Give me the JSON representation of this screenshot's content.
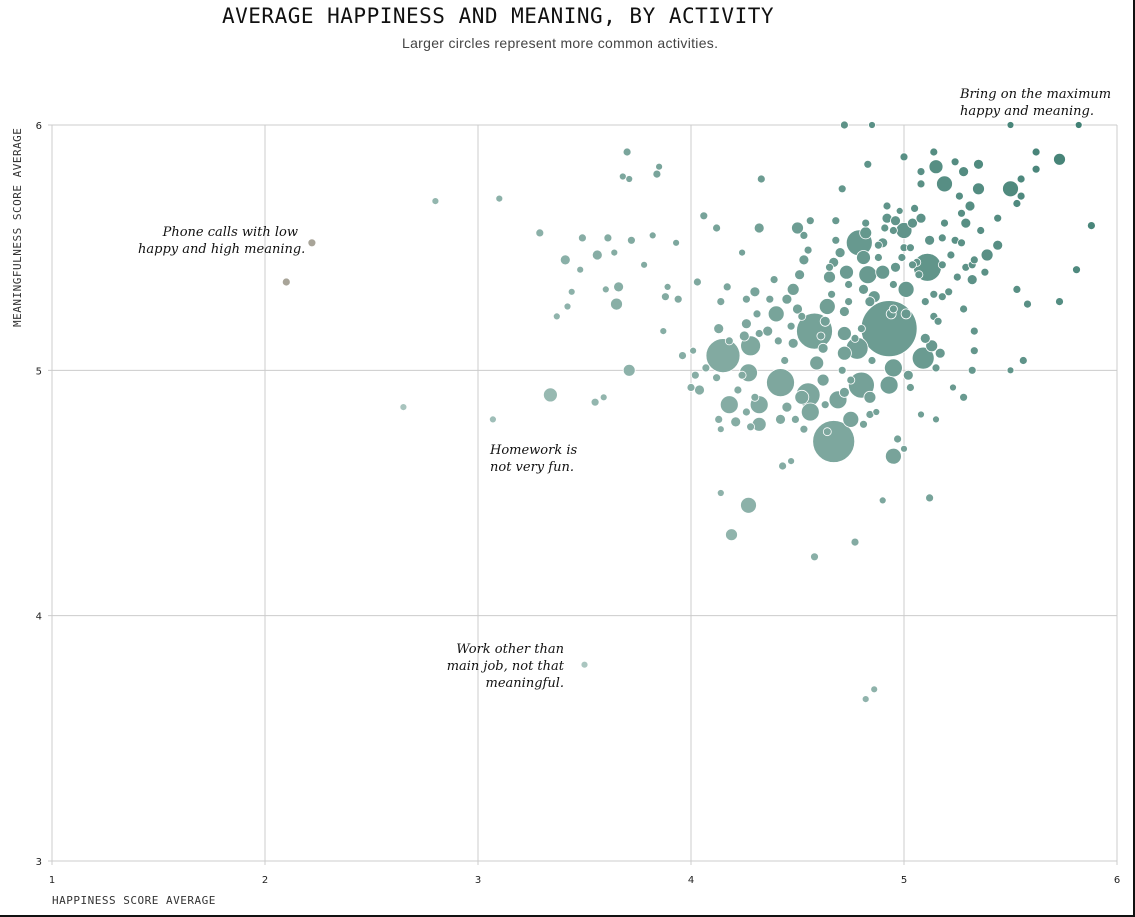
{
  "chart_data": {
    "type": "scatter",
    "title": "AVERAGE HAPPINESS AND MEANING, BY ACTIVITY",
    "subtitle": "Larger circles represent more common activities.",
    "xlabel": "HAPPINESS SCORE AVERAGE",
    "ylabel": "MEANINGFULNESS SCORE AVERAGE",
    "xlim": [
      1,
      6
    ],
    "ylim": [
      3,
      6
    ],
    "xticks": [
      "1",
      "2",
      "3",
      "4",
      "5",
      "6"
    ],
    "yticks": [
      "3",
      "4",
      "5",
      "6"
    ],
    "grid": true,
    "colors": {
      "low": "#c2d6d2",
      "mid": "#7fa89f",
      "high": "#3f7f73",
      "outlier": "#a8a498",
      "grid": "#cccccc"
    },
    "annotations": [
      {
        "lines": [
          "Phone calls with low",
          "happy and high meaning."
        ]
      },
      {
        "lines": [
          "Homework is",
          "not very fun."
        ]
      },
      {
        "lines": [
          "Work other than",
          "main job, not that",
          "meaningful."
        ]
      },
      {
        "lines": [
          "Bring on the maximum",
          "happy and meaning."
        ]
      }
    ],
    "points": [
      [
        2.22,
        5.52,
        4
      ],
      [
        2.1,
        5.36,
        4
      ],
      [
        2.8,
        5.69,
        3.5
      ],
      [
        3.1,
        5.7,
        3.5
      ],
      [
        2.65,
        4.85,
        3.5
      ],
      [
        3.07,
        4.8,
        3.5
      ],
      [
        3.34,
        4.9,
        7
      ],
      [
        3.5,
        3.8,
        3.5
      ],
      [
        3.29,
        5.56,
        4
      ],
      [
        3.41,
        5.45,
        5
      ],
      [
        3.49,
        5.54,
        4
      ],
      [
        3.48,
        5.41,
        3.5
      ],
      [
        3.44,
        5.32,
        3.5
      ],
      [
        3.42,
        5.26,
        3.5
      ],
      [
        3.37,
        5.22,
        3.5
      ],
      [
        3.55,
        4.87,
        4
      ],
      [
        3.59,
        4.89,
        3.5
      ],
      [
        3.56,
        5.47,
        5
      ],
      [
        3.61,
        5.54,
        4
      ],
      [
        3.64,
        5.48,
        3.5
      ],
      [
        3.6,
        5.33,
        3.5
      ],
      [
        3.66,
        5.34,
        5
      ],
      [
        3.65,
        5.27,
        6
      ],
      [
        3.71,
        5.0,
        6
      ],
      [
        3.7,
        5.89,
        4
      ],
      [
        3.71,
        5.78,
        3.5
      ],
      [
        3.68,
        5.79,
        3.5
      ],
      [
        3.72,
        5.53,
        4
      ],
      [
        3.78,
        5.43,
        3.5
      ],
      [
        3.82,
        5.55,
        3.5
      ],
      [
        3.84,
        5.8,
        4
      ],
      [
        3.85,
        5.83,
        3.5
      ],
      [
        3.88,
        5.3,
        4
      ],
      [
        3.87,
        5.16,
        3.5
      ],
      [
        3.93,
        5.52,
        3.5
      ],
      [
        3.94,
        5.29,
        4
      ],
      [
        3.89,
        5.34,
        3.5
      ],
      [
        3.96,
        5.06,
        4
      ],
      [
        4.01,
        5.08,
        3.5
      ],
      [
        4.0,
        4.93,
        4
      ],
      [
        4.02,
        4.98,
        4
      ],
      [
        4.03,
        5.36,
        4
      ],
      [
        4.04,
        4.92,
        5
      ],
      [
        4.07,
        5.01,
        4
      ],
      [
        4.06,
        5.63,
        4
      ],
      [
        4.12,
        5.58,
        4
      ],
      [
        4.13,
        5.17,
        5
      ],
      [
        4.13,
        4.8,
        4
      ],
      [
        4.14,
        4.76,
        3.5
      ],
      [
        4.12,
        4.97,
        4
      ],
      [
        4.15,
        5.06,
        17
      ],
      [
        4.17,
        5.34,
        4
      ],
      [
        4.14,
        5.28,
        4
      ],
      [
        4.18,
        4.86,
        9
      ],
      [
        4.21,
        4.79,
        5
      ],
      [
        4.18,
        5.12,
        4
      ],
      [
        4.19,
        4.33,
        6
      ],
      [
        4.14,
        4.5,
        3.5
      ],
      [
        4.24,
        5.48,
        3.5
      ],
      [
        4.26,
        5.29,
        4
      ],
      [
        4.25,
        5.14,
        5
      ],
      [
        4.28,
        5.1,
        10
      ],
      [
        4.27,
        4.99,
        9
      ],
      [
        4.3,
        4.89,
        4
      ],
      [
        4.32,
        4.86,
        9
      ],
      [
        4.32,
        4.78,
        7
      ],
      [
        4.24,
        4.98,
        4
      ],
      [
        4.22,
        4.92,
        4
      ],
      [
        4.26,
        4.83,
        4
      ],
      [
        4.28,
        4.77,
        4
      ],
      [
        4.26,
        5.19,
        5
      ],
      [
        4.3,
        5.32,
        5
      ],
      [
        4.31,
        5.23,
        4
      ],
      [
        4.32,
        5.58,
        5
      ],
      [
        4.33,
        5.78,
        4
      ],
      [
        4.32,
        5.15,
        4
      ],
      [
        4.27,
        4.45,
        8
      ],
      [
        4.36,
        5.16,
        5
      ],
      [
        4.37,
        5.29,
        4
      ],
      [
        4.39,
        5.37,
        4
      ],
      [
        4.4,
        5.23,
        8
      ],
      [
        4.41,
        5.12,
        4
      ],
      [
        4.42,
        4.95,
        14
      ],
      [
        4.44,
        5.04,
        4
      ],
      [
        4.42,
        4.8,
        5
      ],
      [
        4.45,
        4.85,
        5
      ],
      [
        4.43,
        4.61,
        4
      ],
      [
        4.47,
        4.63,
        3.5
      ],
      [
        4.49,
        4.8,
        4
      ],
      [
        4.45,
        5.29,
        5
      ],
      [
        4.48,
        5.33,
        6
      ],
      [
        4.47,
        5.18,
        4
      ],
      [
        4.48,
        5.11,
        5
      ],
      [
        4.5,
        5.25,
        5
      ],
      [
        4.52,
        5.22,
        4
      ],
      [
        4.51,
        5.39,
        5
      ],
      [
        4.53,
        5.45,
        5
      ],
      [
        4.55,
        5.49,
        4
      ],
      [
        4.53,
        5.55,
        4
      ],
      [
        4.5,
        5.58,
        6
      ],
      [
        4.52,
        4.89,
        7
      ],
      [
        4.53,
        4.76,
        4
      ],
      [
        4.55,
        4.9,
        12
      ],
      [
        4.56,
        4.83,
        9
      ],
      [
        4.58,
        5.16,
        18
      ],
      [
        4.58,
        4.24,
        4
      ],
      [
        4.59,
        5.03,
        7
      ],
      [
        4.61,
        5.14,
        4
      ],
      [
        4.62,
        5.09,
        5
      ],
      [
        4.62,
        4.96,
        6
      ],
      [
        4.63,
        4.86,
        4
      ],
      [
        4.64,
        4.75,
        4
      ],
      [
        4.63,
        5.2,
        5
      ],
      [
        4.64,
        5.26,
        8
      ],
      [
        4.65,
        5.38,
        6
      ],
      [
        4.66,
        5.31,
        4
      ],
      [
        4.65,
        5.42,
        4
      ],
      [
        4.67,
        5.44,
        5
      ],
      [
        4.68,
        5.53,
        4
      ],
      [
        4.7,
        5.48,
        5
      ],
      [
        4.67,
        4.71,
        21
      ],
      [
        4.69,
        4.88,
        9
      ],
      [
        4.71,
        5.0,
        4
      ],
      [
        4.72,
        5.07,
        7
      ],
      [
        4.72,
        4.91,
        5
      ],
      [
        4.72,
        5.15,
        7
      ],
      [
        4.72,
        5.24,
        5
      ],
      [
        4.74,
        5.35,
        4
      ],
      [
        4.73,
        5.4,
        7
      ],
      [
        4.74,
        5.28,
        4
      ],
      [
        4.75,
        4.96,
        4
      ],
      [
        4.75,
        4.8,
        8
      ],
      [
        4.77,
        4.3,
        4
      ],
      [
        4.77,
        5.13,
        4
      ],
      [
        4.78,
        5.09,
        11
      ],
      [
        4.8,
        4.94,
        13
      ],
      [
        4.8,
        5.17,
        4
      ],
      [
        4.81,
        5.46,
        7
      ],
      [
        4.79,
        5.52,
        13
      ],
      [
        4.81,
        5.33,
        5
      ],
      [
        4.82,
        5.56,
        6
      ],
      [
        4.82,
        5.6,
        4
      ],
      [
        4.83,
        5.39,
        9
      ],
      [
        4.81,
        4.78,
        4
      ],
      [
        4.84,
        4.89,
        6
      ],
      [
        4.84,
        4.82,
        4
      ],
      [
        4.84,
        5.28,
        5
      ],
      [
        4.86,
        5.3,
        6
      ],
      [
        4.85,
        5.04,
        4
      ],
      [
        4.87,
        4.83,
        3.5
      ],
      [
        4.88,
        5.46,
        4
      ],
      [
        4.88,
        5.51,
        4
      ],
      [
        4.9,
        4.47,
        3.5
      ],
      [
        4.9,
        5.4,
        7
      ],
      [
        4.91,
        5.58,
        4
      ],
      [
        4.9,
        5.52,
        5
      ],
      [
        4.92,
        5.62,
        5
      ],
      [
        4.93,
        5.17,
        28
      ],
      [
        4.93,
        4.94,
        9
      ],
      [
        4.94,
        5.23,
        5
      ],
      [
        4.95,
        5.25,
        4
      ],
      [
        4.95,
        5.35,
        4
      ],
      [
        4.96,
        5.42,
        5
      ],
      [
        4.97,
        4.72,
        4
      ],
      [
        4.95,
        5.01,
        9
      ],
      [
        4.92,
        5.67,
        4
      ],
      [
        4.96,
        5.61,
        5
      ],
      [
        4.98,
        5.65,
        3.5
      ],
      [
        4.99,
        5.46,
        4
      ],
      [
        5.0,
        5.5,
        4
      ],
      [
        5.0,
        5.57,
        8
      ],
      [
        5.01,
        5.33,
        8
      ],
      [
        5.01,
        5.23,
        5
      ],
      [
        5.02,
        4.98,
        5
      ],
      [
        5.03,
        4.93,
        4
      ],
      [
        5.03,
        5.5,
        4
      ],
      [
        5.04,
        5.6,
        5
      ],
      [
        5.05,
        5.66,
        4
      ],
      [
        5.06,
        5.44,
        4
      ],
      [
        5.07,
        5.39,
        4
      ],
      [
        5.08,
        5.62,
        5
      ],
      [
        5.09,
        5.05,
        11
      ],
      [
        5.1,
        5.28,
        4
      ],
      [
        5.1,
        5.13,
        5
      ],
      [
        5.11,
        5.42,
        14
      ],
      [
        5.12,
        5.53,
        5
      ],
      [
        5.13,
        5.1,
        6
      ],
      [
        5.14,
        5.22,
        4
      ],
      [
        5.14,
        5.31,
        4
      ],
      [
        5.15,
        5.01,
        4
      ],
      [
        5.16,
        5.2,
        4
      ],
      [
        5.17,
        5.07,
        5
      ],
      [
        5.18,
        5.43,
        4
      ],
      [
        5.18,
        5.54,
        4
      ],
      [
        5.18,
        5.3,
        4
      ],
      [
        5.19,
        5.6,
        4
      ],
      [
        5.19,
        5.76,
        8
      ],
      [
        5.21,
        5.32,
        4
      ],
      [
        5.22,
        5.47,
        4
      ],
      [
        5.23,
        4.93,
        3.5
      ],
      [
        5.24,
        5.53,
        4
      ],
      [
        5.24,
        5.85,
        4
      ],
      [
        5.25,
        5.38,
        4
      ],
      [
        5.26,
        5.71,
        4
      ],
      [
        5.27,
        5.52,
        4
      ],
      [
        5.27,
        5.64,
        4
      ],
      [
        5.28,
        4.89,
        4
      ],
      [
        5.28,
        5.25,
        4
      ],
      [
        5.29,
        5.6,
        5
      ],
      [
        5.29,
        5.42,
        4
      ],
      [
        5.31,
        5.67,
        5
      ],
      [
        5.32,
        5.43,
        4
      ],
      [
        5.32,
        5.37,
        5
      ],
      [
        5.33,
        5.16,
        4
      ],
      [
        5.33,
        5.08,
        4
      ],
      [
        5.32,
        5.0,
        4
      ],
      [
        5.33,
        5.45,
        4
      ],
      [
        5.35,
        5.74,
        6
      ],
      [
        5.36,
        5.57,
        4
      ],
      [
        5.38,
        5.4,
        4
      ],
      [
        5.39,
        5.47,
        6
      ],
      [
        5.44,
        5.51,
        5
      ],
      [
        5.44,
        5.62,
        4
      ],
      [
        5.5,
        5.74,
        8
      ],
      [
        5.5,
        5.0,
        3.5
      ],
      [
        5.53,
        5.68,
        4
      ],
      [
        5.55,
        5.71,
        4
      ],
      [
        5.55,
        5.78,
        4
      ],
      [
        5.53,
        5.33,
        4
      ],
      [
        5.56,
        5.04,
        4
      ],
      [
        5.58,
        5.27,
        4
      ],
      [
        5.62,
        5.82,
        4
      ],
      [
        5.62,
        5.89,
        4
      ],
      [
        5.73,
        5.86,
        6
      ],
      [
        5.73,
        5.28,
        4
      ],
      [
        5.81,
        5.41,
        4
      ],
      [
        5.82,
        6.0,
        3.5
      ],
      [
        5.88,
        5.59,
        4
      ],
      [
        5.5,
        6.0,
        3.5
      ],
      [
        5.14,
        5.89,
        4
      ],
      [
        5.0,
        5.87,
        4
      ],
      [
        5.08,
        5.76,
        4
      ],
      [
        4.83,
        5.84,
        4
      ],
      [
        4.72,
        6.0,
        4
      ],
      [
        4.85,
        6.0,
        3.5
      ],
      [
        4.71,
        5.74,
        4
      ],
      [
        5.08,
        5.81,
        4
      ],
      [
        5.15,
        5.83,
        7
      ],
      [
        5.28,
        5.81,
        5
      ],
      [
        5.35,
        5.84,
        5
      ],
      [
        4.95,
        5.57,
        4
      ],
      [
        5.04,
        5.43,
        4
      ],
      [
        4.86,
        3.7,
        3.5
      ],
      [
        4.82,
        3.66,
        3.5
      ],
      [
        5.12,
        4.48,
        4
      ],
      [
        5.0,
        4.68,
        3.5
      ],
      [
        4.95,
        4.65,
        8
      ],
      [
        5.15,
        4.8,
        3.5
      ],
      [
        5.08,
        4.82,
        3.5
      ],
      [
        4.68,
        5.61,
        4
      ],
      [
        4.56,
        5.61,
        4
      ]
    ]
  }
}
